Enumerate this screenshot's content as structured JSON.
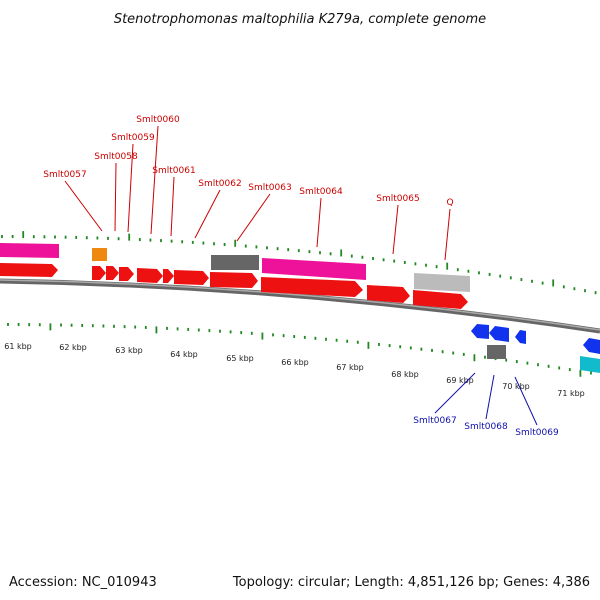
{
  "title": "Stenotrophomonas maltophilia K279a, complete genome",
  "footer": {
    "accession": "Accession: NC_010943",
    "summary": "Topology: circular; Length: 4,851,126 bp; Genes: 4,386"
  },
  "colors": {
    "forward_label": "#cc0000",
    "reverse_label": "#1010aa",
    "cds": "#ee1111",
    "cds_reverse": "#1133ee",
    "trna": "#ee1199",
    "rrna_other": "#666666",
    "misc": "#bbbbbb",
    "orange": "#ee8811",
    "cyan": "#11bbcc",
    "ticks": "#228822",
    "backbone": "#777777"
  },
  "ticks": [
    "61 kbp",
    "62 kbp",
    "63 kbp",
    "64 kbp",
    "65 kbp",
    "66 kbp",
    "67 kbp",
    "68 kbp",
    "69 kbp",
    "70 kbp",
    "71 kbp"
  ],
  "forward_labels": [
    "Smlt0057",
    "Smlt0058",
    "Smlt0059",
    "Smlt0060",
    "Smlt0061",
    "Smlt0062",
    "Smlt0063",
    "Smlt0064",
    "Smlt0065",
    "Q"
  ],
  "reverse_labels": [
    "Smlt0067",
    "Smlt0068",
    "Smlt0069"
  ]
}
